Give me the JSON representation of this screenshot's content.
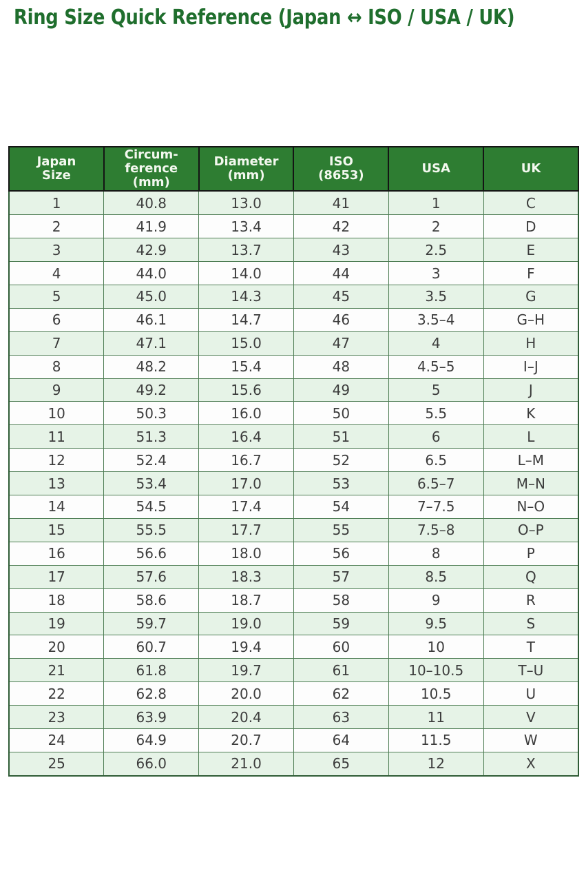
{
  "page": {
    "title": "Ring Size Quick Reference (Japan ↔ ISO / USA / UK)"
  },
  "colors": {
    "title_text": "#1f6e2d",
    "header_bg": "#2e7d32",
    "header_text": "#f3f8ef",
    "row_alt_bg": "#e6f3e7",
    "row_bg": "#fdfdfd",
    "body_border": "#4e7d54",
    "header_border": "#141414",
    "cell_text": "#3c3c3c"
  },
  "table": {
    "header_display": [
      "Japan\nSize",
      "Circum-\nference\n(mm)",
      "Diameter\n(mm)",
      "ISO\n(8653)",
      "USA",
      "UK"
    ]
  },
  "chart_data": {
    "type": "table",
    "title": "Ring Size Quick Reference (Japan ↔ ISO / USA / UK)",
    "columns": [
      "Japan Size",
      "Circumference (mm)",
      "Diameter (mm)",
      "ISO (8653)",
      "USA",
      "UK"
    ],
    "rows": [
      [
        "1",
        "40.8",
        "13.0",
        "41",
        "1",
        "C"
      ],
      [
        "2",
        "41.9",
        "13.4",
        "42",
        "2",
        "D"
      ],
      [
        "3",
        "42.9",
        "13.7",
        "43",
        "2.5",
        "E"
      ],
      [
        "4",
        "44.0",
        "14.0",
        "44",
        "3",
        "F"
      ],
      [
        "5",
        "45.0",
        "14.3",
        "45",
        "3.5",
        "G"
      ],
      [
        "6",
        "46.1",
        "14.7",
        "46",
        "3.5–4",
        "G–H"
      ],
      [
        "7",
        "47.1",
        "15.0",
        "47",
        "4",
        "H"
      ],
      [
        "8",
        "48.2",
        "15.4",
        "48",
        "4.5–5",
        "I–J"
      ],
      [
        "9",
        "49.2",
        "15.6",
        "49",
        "5",
        "J"
      ],
      [
        "10",
        "50.3",
        "16.0",
        "50",
        "5.5",
        "K"
      ],
      [
        "11",
        "51.3",
        "16.4",
        "51",
        "6",
        "L"
      ],
      [
        "12",
        "52.4",
        "16.7",
        "52",
        "6.5",
        "L–M"
      ],
      [
        "13",
        "53.4",
        "17.0",
        "53",
        "6.5–7",
        "M–N"
      ],
      [
        "14",
        "54.5",
        "17.4",
        "54",
        "7–7.5",
        "N–O"
      ],
      [
        "15",
        "55.5",
        "17.7",
        "55",
        "7.5–8",
        "O–P"
      ],
      [
        "16",
        "56.6",
        "18.0",
        "56",
        "8",
        "P"
      ],
      [
        "17",
        "57.6",
        "18.3",
        "57",
        "8.5",
        "Q"
      ],
      [
        "18",
        "58.6",
        "18.7",
        "58",
        "9",
        "R"
      ],
      [
        "19",
        "59.7",
        "19.0",
        "59",
        "9.5",
        "S"
      ],
      [
        "20",
        "60.7",
        "19.4",
        "60",
        "10",
        "T"
      ],
      [
        "21",
        "61.8",
        "19.7",
        "61",
        "10–10.5",
        "T–U"
      ],
      [
        "22",
        "62.8",
        "20.0",
        "62",
        "10.5",
        "U"
      ],
      [
        "23",
        "63.9",
        "20.4",
        "63",
        "11",
        "V"
      ],
      [
        "24",
        "64.9",
        "20.7",
        "64",
        "11.5",
        "W"
      ],
      [
        "25",
        "66.0",
        "21.0",
        "65",
        "12",
        "X"
      ]
    ]
  }
}
